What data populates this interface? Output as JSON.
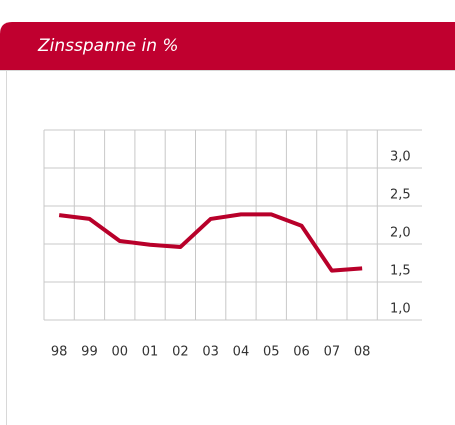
{
  "chart_data": {
    "type": "line",
    "title": "Zinsspanne in %",
    "categories": [
      "98",
      "99",
      "00",
      "01",
      "02",
      "03",
      "04",
      "05",
      "06",
      "07",
      "08"
    ],
    "series": [
      {
        "color": "#b8002a",
        "values": [
          2.38,
          2.33,
          2.04,
          1.99,
          1.96,
          2.33,
          2.39,
          2.39,
          2.24,
          1.65,
          1.68
        ]
      }
    ],
    "ylim": [
      1.0,
      3.5
    ],
    "yticks": [
      {
        "value": 1.0,
        "label": "1,0"
      },
      {
        "value": 1.5,
        "label": "1,5"
      },
      {
        "value": 2.0,
        "label": "2,0"
      },
      {
        "value": 2.5,
        "label": "2,5"
      },
      {
        "value": 3.0,
        "label": "3,0"
      }
    ],
    "grid": true
  }
}
